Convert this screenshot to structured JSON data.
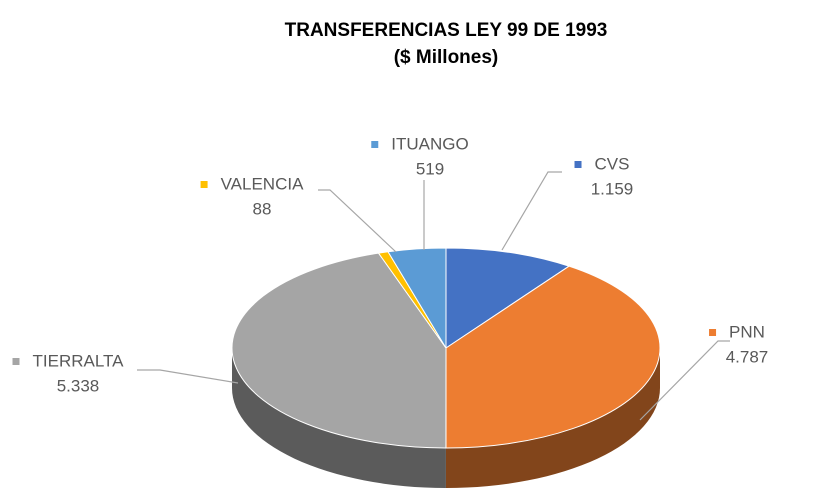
{
  "chart_data": {
    "type": "pie3d",
    "title": "TRANSFERENCIAS LEY 99 DE 1993",
    "subtitle": "($ Millones)",
    "categories": [
      "CVS",
      "PNN",
      "TIERRALTA",
      "VALENCIA",
      "ITUANGO"
    ],
    "values": [
      1159,
      4787,
      5338,
      88,
      519
    ],
    "value_labels": [
      "1.159",
      "4.787",
      "5.338",
      "88",
      "519"
    ],
    "colors": [
      "#4472c4",
      "#ed7d31",
      "#a5a5a5",
      "#ffc000",
      "#5b9bd5"
    ]
  }
}
